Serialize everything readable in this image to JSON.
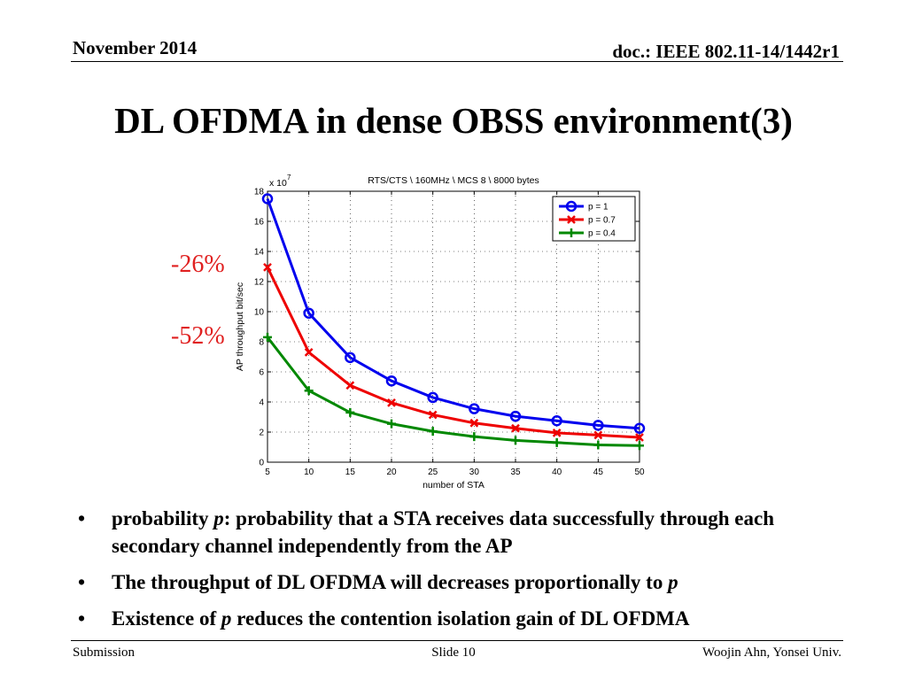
{
  "header": {
    "date": "November 2014",
    "doc": "doc.: IEEE 802.11-14/1442r1"
  },
  "slide_title": "DL OFDMA in dense OBSS environment(3)",
  "annotations": {
    "pct1": "-26%",
    "pct2": "-52%"
  },
  "colors": {
    "annotation": "#e02020",
    "series_p1": "#0000ee",
    "series_p07": "#ee0000",
    "series_p04": "#008800"
  },
  "chart_data": {
    "type": "line",
    "title": "RTS/CTS \\ 160MHz \\ MCS 8 \\ 8000 bytes",
    "xlabel": "number of STA",
    "ylabel": "AP throughput bit/sec",
    "y_scale_label": "x 10",
    "y_scale_exp": "7",
    "xlim": [
      5,
      50
    ],
    "ylim": [
      0,
      18
    ],
    "x_ticks": [
      "5",
      "10",
      "15",
      "20",
      "25",
      "30",
      "35",
      "40",
      "45",
      "50"
    ],
    "y_ticks": [
      "0",
      "2",
      "4",
      "6",
      "8",
      "10",
      "12",
      "14",
      "16",
      "18"
    ],
    "grid": true,
    "legend": "top-right",
    "x": [
      5,
      10,
      15,
      20,
      25,
      30,
      35,
      40,
      45,
      50
    ],
    "series": [
      {
        "name": "p = 1",
        "marker": "o",
        "color": "#0000ee",
        "values": [
          17.5,
          9.9,
          6.95,
          5.4,
          4.3,
          3.55,
          3.05,
          2.75,
          2.45,
          2.25
        ]
      },
      {
        "name": "p = 0.7",
        "marker": "x",
        "color": "#ee0000",
        "values": [
          12.95,
          7.3,
          5.1,
          3.95,
          3.15,
          2.6,
          2.25,
          1.95,
          1.8,
          1.65
        ]
      },
      {
        "name": "p = 0.4",
        "marker": "+",
        "color": "#008800",
        "values": [
          8.3,
          4.75,
          3.3,
          2.55,
          2.05,
          1.7,
          1.45,
          1.3,
          1.15,
          1.1
        ]
      }
    ]
  },
  "bullets": [
    {
      "pre": "probability ",
      "em": "p",
      "post": ": probability that a STA receives data successfully through each secondary channel independently from the AP"
    },
    {
      "pre": "The throughput of DL OFDMA will decreases proportionally to ",
      "em": "p",
      "post": ""
    },
    {
      "pre": "Existence of ",
      "em": "p",
      "post": " reduces the contention isolation gain of DL OFDMA"
    }
  ],
  "footer": {
    "left": "Submission",
    "center": "Slide 10",
    "right": "Woojin Ahn, Yonsei Univ."
  }
}
